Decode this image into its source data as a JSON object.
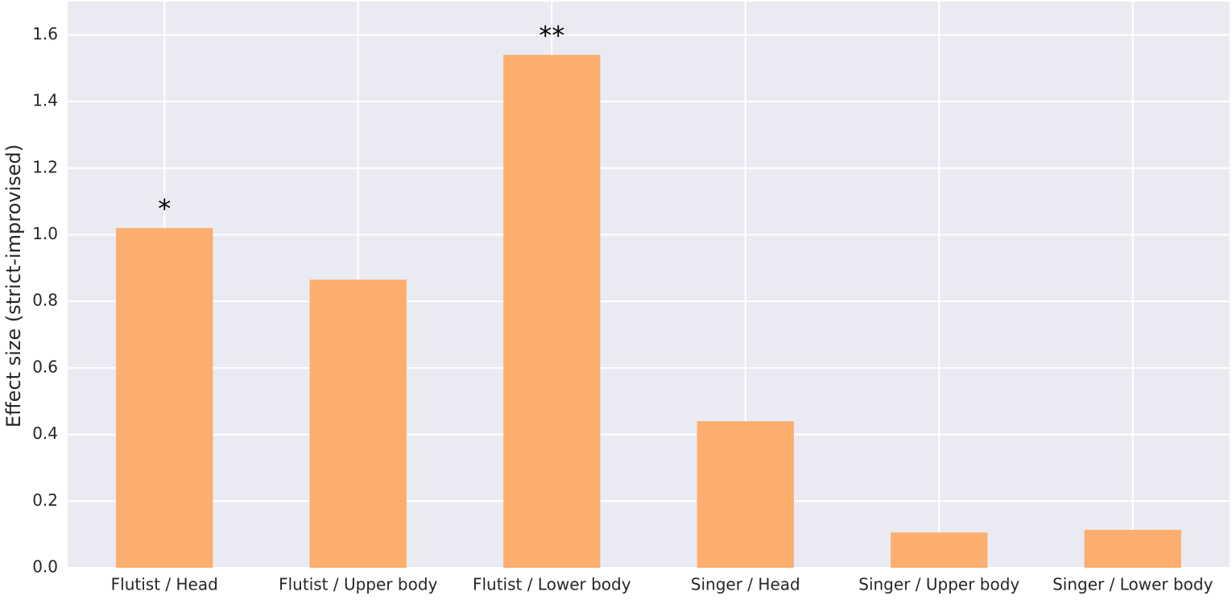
{
  "chart_data": {
    "type": "bar",
    "y_label": "Effect size (strict-improvised)",
    "categories": [
      "Flutist / Head",
      "Flutist / Upper body",
      "Flutist / Lower body",
      "Singer / Head",
      "Singer / Upper body",
      "Singer / Lower body"
    ],
    "values": [
      1.02,
      0.865,
      1.54,
      0.44,
      0.106,
      0.114
    ],
    "annotations": [
      "*",
      null,
      "**",
      null,
      null,
      null
    ],
    "color": "#fbae6d",
    "ylim": [
      0,
      1.7
    ],
    "yticks": [
      {
        "value": 0,
        "label": "0.0"
      },
      0.2,
      0.4,
      0.6,
      0.8,
      {
        "value": 1,
        "label": "1.0"
      },
      1.2,
      1.4,
      1.6
    ],
    "grid": true
  }
}
